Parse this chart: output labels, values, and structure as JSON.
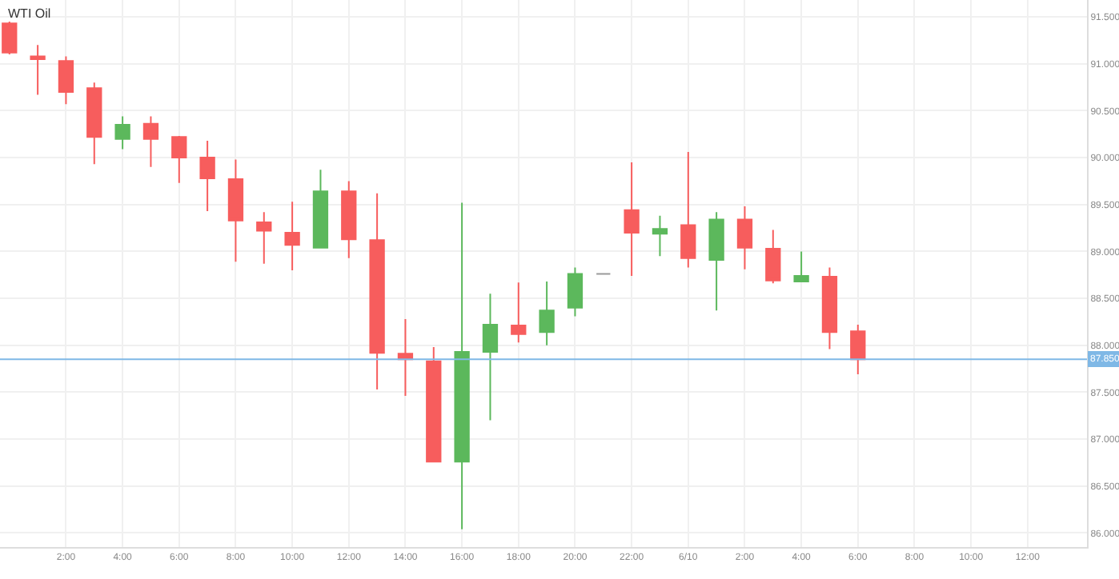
{
  "chart_data": {
    "type": "candlestick",
    "title": "WTI Oil",
    "x": [
      "--06-09T00:00",
      "--06-09T01:00",
      "--06-09T02:00",
      "--06-09T03:00",
      "--06-09T04:00",
      "--06-09T05:00",
      "--06-09T06:00",
      "--06-09T07:00",
      "--06-09T08:00",
      "--06-09T09:00",
      "--06-09T10:00",
      "--06-09T11:00",
      "--06-09T12:00",
      "--06-09T13:00",
      "--06-09T14:00",
      "--06-09T15:00",
      "--06-09T16:00",
      "--06-09T17:00",
      "--06-09T18:00",
      "--06-09T19:00",
      "--06-09T20:00",
      "--06-09T21:00",
      "--06-09T22:00",
      "--06-09T23:00",
      "--06-10T00:00",
      "--06-10T01:00",
      "--06-10T02:00",
      "--06-10T03:00",
      "--06-10T04:00",
      "--06-10T05:00",
      "--06-10T06:00"
    ],
    "ohlc": [
      [
        91.43,
        91.45,
        91.1,
        91.12
      ],
      [
        91.08,
        91.2,
        90.67,
        91.05
      ],
      [
        91.03,
        91.08,
        90.57,
        90.7
      ],
      [
        90.74,
        90.8,
        89.93,
        90.22
      ],
      [
        90.2,
        90.44,
        90.09,
        90.35
      ],
      [
        90.36,
        90.44,
        89.9,
        90.2
      ],
      [
        90.22,
        90.23,
        89.73,
        90.0
      ],
      [
        90.0,
        90.18,
        89.43,
        89.78
      ],
      [
        89.77,
        89.98,
        88.89,
        89.33
      ],
      [
        89.31,
        89.42,
        88.87,
        89.22
      ],
      [
        89.2,
        89.53,
        88.8,
        89.07
      ],
      [
        89.04,
        89.87,
        89.04,
        89.64
      ],
      [
        89.64,
        89.75,
        88.93,
        89.13
      ],
      [
        89.12,
        89.62,
        87.53,
        87.92
      ],
      [
        87.91,
        88.28,
        87.46,
        87.85
      ],
      [
        87.83,
        87.98,
        86.76,
        86.76
      ],
      [
        86.76,
        89.52,
        86.04,
        87.93
      ],
      [
        87.93,
        88.55,
        87.2,
        88.22
      ],
      [
        88.21,
        88.67,
        88.03,
        88.12
      ],
      [
        88.14,
        88.68,
        88.0,
        88.37
      ],
      [
        88.4,
        88.83,
        88.31,
        88.76
      ],
      [
        88.76,
        88.76,
        88.76,
        88.76
      ],
      [
        89.44,
        89.95,
        88.74,
        89.2
      ],
      [
        89.19,
        89.38,
        88.95,
        89.24
      ],
      [
        89.28,
        90.06,
        88.83,
        88.93
      ],
      [
        88.91,
        89.42,
        88.37,
        89.34
      ],
      [
        89.34,
        89.48,
        88.81,
        89.04
      ],
      [
        89.03,
        89.23,
        88.66,
        88.69
      ],
      [
        88.68,
        89.0,
        88.68,
        88.74
      ],
      [
        88.73,
        88.83,
        87.96,
        88.14
      ],
      [
        88.15,
        88.22,
        87.69,
        87.85
      ]
    ],
    "colors": [
      "#f75d5d",
      "#f75d5d",
      "#f75d5d",
      "#f75d5d",
      "#5cb85c",
      "#f75d5d",
      "#f75d5d",
      "#f75d5d",
      "#f75d5d",
      "#f75d5d",
      "#f75d5d",
      "#5cb85c",
      "#f75d5d",
      "#f75d5d",
      "#f75d5d",
      "#f75d5d",
      "#5cb85c",
      "#5cb85c",
      "#f75d5d",
      "#5cb85c",
      "#5cb85c",
      "#999999",
      "#f75d5d",
      "#5cb85c",
      "#f75d5d",
      "#5cb85c",
      "#f75d5d",
      "#f75d5d",
      "#5cb85c",
      "#f75d5d",
      "#f75d5d"
    ],
    "xlim": [
      "--06-08T23:40",
      "--06-10T14:06"
    ],
    "xticks": [
      {
        "value": "--06-09T02:00",
        "label": "2:00"
      },
      {
        "value": "--06-09T04:00",
        "label": "4:00"
      },
      {
        "value": "--06-09T06:00",
        "label": "6:00"
      },
      {
        "value": "--06-09T08:00",
        "label": "8:00"
      },
      {
        "value": "--06-09T10:00",
        "label": "10:00"
      },
      {
        "value": "--06-09T12:00",
        "label": "12:00"
      },
      {
        "value": "--06-09T14:00",
        "label": "14:00"
      },
      {
        "value": "--06-09T16:00",
        "label": "16:00"
      },
      {
        "value": "--06-09T18:00",
        "label": "18:00"
      },
      {
        "value": "--06-09T20:00",
        "label": "20:00"
      },
      {
        "value": "--06-09T22:00",
        "label": "22:00"
      },
      {
        "value": "--06-10T00:00",
        "label": "6/10"
      },
      {
        "value": "--06-10T02:00",
        "label": "2:00"
      },
      {
        "value": "--06-10T04:00",
        "label": "4:00"
      },
      {
        "value": "--06-10T06:00",
        "label": "6:00"
      },
      {
        "value": "--06-10T08:00",
        "label": "8:00"
      },
      {
        "value": "--06-10T10:00",
        "label": "10:00"
      },
      {
        "value": "--06-10T12:00",
        "label": "12:00"
      }
    ],
    "ylim": [
      85.85,
      91.68
    ],
    "yticks": [
      {
        "value": 86,
        "label": "86.000"
      },
      {
        "value": 86.5,
        "label": "86.500"
      },
      {
        "value": 87,
        "label": "87.000"
      },
      {
        "value": 87.5,
        "label": "87.500"
      },
      {
        "value": 88,
        "label": "88.000"
      },
      {
        "value": 88.5,
        "label": "88.500"
      },
      {
        "value": 89,
        "label": "89.000"
      },
      {
        "value": 89.5,
        "label": "89.500"
      },
      {
        "value": 90,
        "label": "90.000"
      },
      {
        "value": 90.5,
        "label": "90.500"
      },
      {
        "value": 91,
        "label": "91.000"
      },
      {
        "value": 91.5,
        "label": "91.500"
      }
    ],
    "grid": true,
    "ref_lines": [
      {
        "axis": "y",
        "value": 87.85,
        "label": "87.850",
        "color": "#7fb8e6"
      }
    ]
  }
}
